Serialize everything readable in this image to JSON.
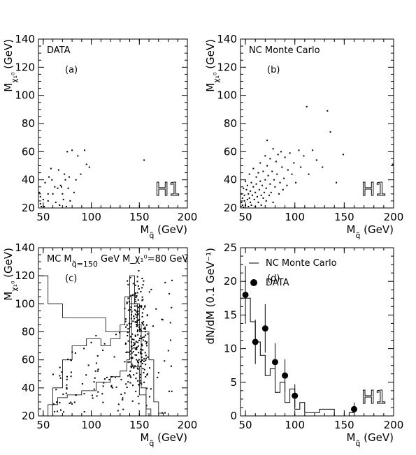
{
  "chart_data": [
    {
      "type": "scatter",
      "panel_label": "(a)",
      "title": "DATA",
      "xlabel": "M_q̃ (GeV)",
      "ylabel": "M_χ₁⁰ (GeV)",
      "xlim": [
        45,
        200
      ],
      "ylim": [
        20,
        140
      ],
      "xticks": [
        50,
        100,
        150,
        200
      ],
      "yticks": [
        20,
        40,
        60,
        80,
        100,
        120,
        140
      ],
      "logo": "H1",
      "points": [
        [
          46,
          31
        ],
        [
          47,
          28
        ],
        [
          47,
          23
        ],
        [
          48,
          21
        ],
        [
          50,
          26
        ],
        [
          51,
          21
        ],
        [
          52,
          38
        ],
        [
          55,
          30
        ],
        [
          55,
          25
        ],
        [
          56,
          42
        ],
        [
          58,
          48
        ],
        [
          59,
          40
        ],
        [
          60,
          30
        ],
        [
          62,
          35
        ],
        [
          63,
          24
        ],
        [
          65,
          34
        ],
        [
          66,
          47
        ],
        [
          67,
          22
        ],
        [
          68,
          36
        ],
        [
          69,
          35
        ],
        [
          70,
          30
        ],
        [
          71,
          26
        ],
        [
          72,
          44
        ],
        [
          73,
          40
        ],
        [
          74,
          21
        ],
        [
          75,
          60
        ],
        [
          76,
          34
        ],
        [
          77,
          42
        ],
        [
          78,
          25
        ],
        [
          80,
          61
        ],
        [
          82,
          31
        ],
        [
          84,
          40
        ],
        [
          86,
          57
        ],
        [
          89,
          44
        ],
        [
          93,
          61
        ],
        [
          95,
          51
        ],
        [
          98,
          49
        ],
        [
          155,
          54
        ]
      ]
    },
    {
      "type": "scatter",
      "panel_label": "(b)",
      "title": "NC Monte Carlo",
      "xlabel": "M_q̃ (GeV)",
      "ylabel": "M_χ₁⁰ (GeV)",
      "xlim": [
        45,
        200
      ],
      "ylim": [
        20,
        140
      ],
      "xticks": [
        50,
        100,
        150,
        200
      ],
      "yticks": [
        20,
        40,
        60,
        80,
        100,
        120,
        140
      ],
      "logo": "H1",
      "points": [
        [
          45.5,
          21
        ],
        [
          46,
          24
        ],
        [
          46,
          30
        ],
        [
          47,
          22
        ],
        [
          47,
          27
        ],
        [
          48,
          34
        ],
        [
          48,
          20.5
        ],
        [
          49,
          25
        ],
        [
          49,
          29
        ],
        [
          50,
          22
        ],
        [
          50,
          39
        ],
        [
          51,
          33
        ],
        [
          52,
          26
        ],
        [
          52,
          36
        ],
        [
          53,
          30
        ],
        [
          53,
          21
        ],
        [
          54,
          44
        ],
        [
          54,
          27
        ],
        [
          55,
          24
        ],
        [
          55,
          32
        ],
        [
          56,
          38
        ],
        [
          56,
          22
        ],
        [
          57,
          29
        ],
        [
          58,
          48
        ],
        [
          58,
          35
        ],
        [
          59,
          26
        ],
        [
          60,
          31
        ],
        [
          60,
          21
        ],
        [
          61,
          42
        ],
        [
          61,
          37
        ],
        [
          62,
          28
        ],
        [
          63,
          45
        ],
        [
          63,
          24
        ],
        [
          64,
          33
        ],
        [
          65,
          39
        ],
        [
          65,
          52
        ],
        [
          66,
          29
        ],
        [
          66,
          22
        ],
        [
          67,
          36
        ],
        [
          68,
          46
        ],
        [
          68,
          27
        ],
        [
          69,
          31
        ],
        [
          70,
          57
        ],
        [
          70,
          40
        ],
        [
          71,
          25
        ],
        [
          71,
          34
        ],
        [
          72,
          50
        ],
        [
          72,
          68
        ],
        [
          73,
          43
        ],
        [
          74,
          29
        ],
        [
          75,
          37
        ],
        [
          75,
          55
        ],
        [
          76,
          31
        ],
        [
          77,
          46
        ],
        [
          78,
          62
        ],
        [
          78,
          24
        ],
        [
          79,
          40
        ],
        [
          80,
          35
        ],
        [
          81,
          53
        ],
        [
          82,
          44
        ],
        [
          83,
          58
        ],
        [
          84,
          30
        ],
        [
          85,
          38
        ],
        [
          86,
          60
        ],
        [
          87,
          49
        ],
        [
          88,
          33
        ],
        [
          89,
          41
        ],
        [
          90,
          56
        ],
        [
          92,
          36
        ],
        [
          93,
          47
        ],
        [
          95,
          59
        ],
        [
          97,
          44
        ],
        [
          99,
          52
        ],
        [
          101,
          38
        ],
        [
          104,
          61
        ],
        [
          106,
          49
        ],
        [
          109,
          57
        ],
        [
          112,
          92
        ],
        [
          114,
          44
        ],
        [
          118,
          61
        ],
        [
          122,
          54
        ],
        [
          128,
          49
        ],
        [
          133,
          89
        ],
        [
          136,
          74
        ],
        [
          142,
          38
        ],
        [
          149,
          58
        ],
        [
          199,
          51
        ]
      ]
    },
    {
      "type": "scatter",
      "panel_label": "(c)",
      "title": "MC M_q̃=150 GeV  M_χ₁⁰=80 GeV",
      "xlabel": "M_q̃ (GeV)",
      "ylabel": "M_χ₁⁰ (GeV)",
      "xlim": [
        45,
        200
      ],
      "ylim": [
        20,
        140
      ],
      "xticks": [
        50,
        100,
        150,
        200
      ],
      "yticks": [
        20,
        40,
        60,
        80,
        100,
        120,
        140
      ],
      "contour_levels": [
        [
          [
            45,
            120
          ],
          [
            55,
            120
          ],
          [
            55,
            100
          ],
          [
            70,
            100
          ],
          [
            70,
            90
          ],
          [
            115,
            90
          ],
          [
            115,
            80
          ],
          [
            140,
            80
          ],
          [
            140,
            120
          ],
          [
            145,
            120
          ],
          [
            145,
            100
          ],
          [
            150,
            100
          ],
          [
            150,
            80
          ],
          [
            160,
            80
          ],
          [
            160,
            60
          ],
          [
            165,
            60
          ],
          [
            165,
            30
          ],
          [
            170,
            30
          ],
          [
            170,
            22
          ],
          [
            175,
            22
          ],
          [
            175,
            20
          ]
        ],
        [
          [
            60,
            20
          ],
          [
            60,
            40
          ],
          [
            70,
            40
          ],
          [
            70,
            60
          ],
          [
            80,
            60
          ],
          [
            80,
            70
          ],
          [
            95,
            70
          ],
          [
            95,
            75
          ],
          [
            110,
            75
          ],
          [
            110,
            70
          ],
          [
            120,
            70
          ],
          [
            120,
            75
          ],
          [
            130,
            75
          ],
          [
            130,
            85
          ],
          [
            135,
            85
          ],
          [
            135,
            105
          ],
          [
            142,
            105
          ],
          [
            142,
            55
          ],
          [
            150,
            55
          ],
          [
            150,
            35
          ],
          [
            157,
            35
          ],
          [
            157,
            25
          ],
          [
            162,
            25
          ],
          [
            162,
            20
          ]
        ],
        [
          [
            55,
            20
          ],
          [
            55,
            28
          ],
          [
            65,
            28
          ],
          [
            65,
            33
          ],
          [
            75,
            33
          ],
          [
            75,
            35
          ],
          [
            90,
            35
          ],
          [
            90,
            38
          ],
          [
            105,
            38
          ],
          [
            105,
            44
          ],
          [
            120,
            44
          ],
          [
            120,
            48
          ],
          [
            130,
            48
          ],
          [
            130,
            52
          ],
          [
            137,
            52
          ],
          [
            137,
            60
          ],
          [
            140,
            60
          ],
          [
            140,
            100
          ],
          [
            148,
            100
          ],
          [
            148,
            85
          ],
          [
            152,
            85
          ],
          [
            152,
            40
          ],
          [
            157,
            40
          ],
          [
            157,
            20
          ]
        ]
      ]
    },
    {
      "type": "line",
      "panel_label": "(d)",
      "xlabel": "M_q̃ (GeV)",
      "ylabel": "dN/dM (0.1 GeV⁻¹)",
      "xlim": [
        45,
        200
      ],
      "ylim": [
        0,
        25
      ],
      "xticks": [
        50,
        100,
        150,
        200
      ],
      "yticks": [
        0,
        5,
        10,
        15,
        20,
        25
      ],
      "logo": "H1",
      "legend": [
        {
          "name": "NC Monte Carlo",
          "marker": "line"
        },
        {
          "name": "DATA",
          "marker": "dot"
        }
      ],
      "series": [
        {
          "name": "NC Monte Carlo",
          "style": "histogram",
          "bins": [
            [
              45,
              55,
              17.5
            ],
            [
              55,
              60,
              14
            ],
            [
              60,
              65,
              11
            ],
            [
              65,
              70,
              9
            ],
            [
              70,
              75,
              6
            ],
            [
              75,
              80,
              7
            ],
            [
              80,
              85,
              3.5
            ],
            [
              85,
              90,
              5
            ],
            [
              90,
              95,
              2
            ],
            [
              95,
              100,
              4
            ],
            [
              100,
              105,
              1
            ],
            [
              105,
              110,
              2
            ],
            [
              110,
              125,
              0.5
            ],
            [
              125,
              140,
              1
            ],
            [
              140,
              155,
              0
            ],
            [
              155,
              160,
              0.5
            ],
            [
              160,
              165,
              0
            ]
          ]
        },
        {
          "name": "DATA",
          "style": "points-with-errors",
          "points": [
            {
              "x": 50,
              "y": 18,
              "err": 4.3
            },
            {
              "x": 60,
              "y": 11,
              "err": 3.3
            },
            {
              "x": 70,
              "y": 13,
              "err": 3.6
            },
            {
              "x": 80,
              "y": 8,
              "err": 2.8
            },
            {
              "x": 90,
              "y": 6,
              "err": 2.4
            },
            {
              "x": 100,
              "y": 3,
              "err": 1.7
            },
            {
              "x": 160,
              "y": 1,
              "err": 1.0
            }
          ]
        }
      ]
    }
  ]
}
